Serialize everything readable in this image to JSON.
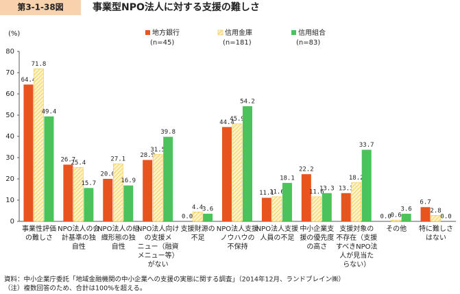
{
  "chart_data": {
    "type": "bar",
    "figure_label": "第3-1-38図",
    "title": "事業型NPO法人に対する支援の難しさ",
    "y_unit": "(%)",
    "categories": [
      [
        "事業性評価",
        "の難しさ"
      ],
      [
        "NPO法人の会",
        "計基準の独",
        "自性"
      ],
      [
        "NPO法人の組",
        "織形態の独",
        "自性"
      ],
      [
        "NPO法人向け",
        "の支援メ",
        "ニュー（融資",
        "メニュー等）",
        "がない"
      ],
      [
        "支援財源の",
        "不足"
      ],
      [
        "NPO法人支援",
        "ノウハウの",
        "不保持"
      ],
      [
        "NPO法人支援",
        "人員の不足"
      ],
      [
        "中小企業支",
        "援の優先度",
        "の高さ"
      ],
      [
        "支援対象の",
        "不存在（支援",
        "すべきNPO法",
        "人が見当た",
        "らない）"
      ],
      [
        "その他"
      ],
      [
        "特に難しさ",
        "はない"
      ]
    ],
    "series": [
      {
        "name": "地方銀行",
        "note": "(n=45)",
        "color": "#e8541e",
        "hatched": false,
        "values": [
          64.4,
          26.7,
          20.0,
          28.9,
          0.0,
          44.4,
          11.1,
          22.2,
          13.3,
          0.0,
          6.7
        ],
        "value_labels": [
          "64.4",
          "26.7",
          "20.0",
          "28.9",
          "0.0",
          "44.4",
          "11.1",
          "22.2",
          "13.3",
          "0.0",
          "6.7"
        ]
      },
      {
        "name": "信用金庫",
        "note": "(n=181)",
        "color": "#f2c744",
        "hatched": true,
        "values": [
          71.8,
          25.4,
          27.1,
          31.5,
          4.4,
          45.9,
          11.6,
          11.6,
          18.2,
          0.6,
          2.8
        ],
        "value_labels": [
          "71.8",
          "25.4",
          "27.1",
          "31.5",
          "4.4",
          "45.9",
          "11.6",
          "11.6",
          "18.2",
          "0.6",
          "2.8"
        ]
      },
      {
        "name": "信用組合",
        "note": "(n=83)",
        "color": "#4cc35a",
        "hatched": false,
        "values": [
          49.4,
          15.7,
          16.9,
          39.8,
          3.6,
          54.2,
          18.1,
          13.3,
          33.7,
          3.6,
          0.0
        ],
        "value_labels": [
          "49.4",
          "15.7",
          "16.9",
          "39.8",
          "3.6",
          "54.2",
          "18.1",
          "13.3",
          "33.7",
          "3.6",
          "0.0"
        ]
      }
    ],
    "ylim": [
      0,
      80
    ],
    "yticks": [
      0,
      10,
      20,
      30,
      40,
      50,
      60,
      70,
      80
    ],
    "grid": false,
    "notes": [
      "資料：中小企業庁委託「地域金融機関の中小企業への支援の実態に関する調査」（2014年12月、ランドブレイン㈱）",
      "（注）複数回答のため、合計は100%を超える。"
    ]
  }
}
